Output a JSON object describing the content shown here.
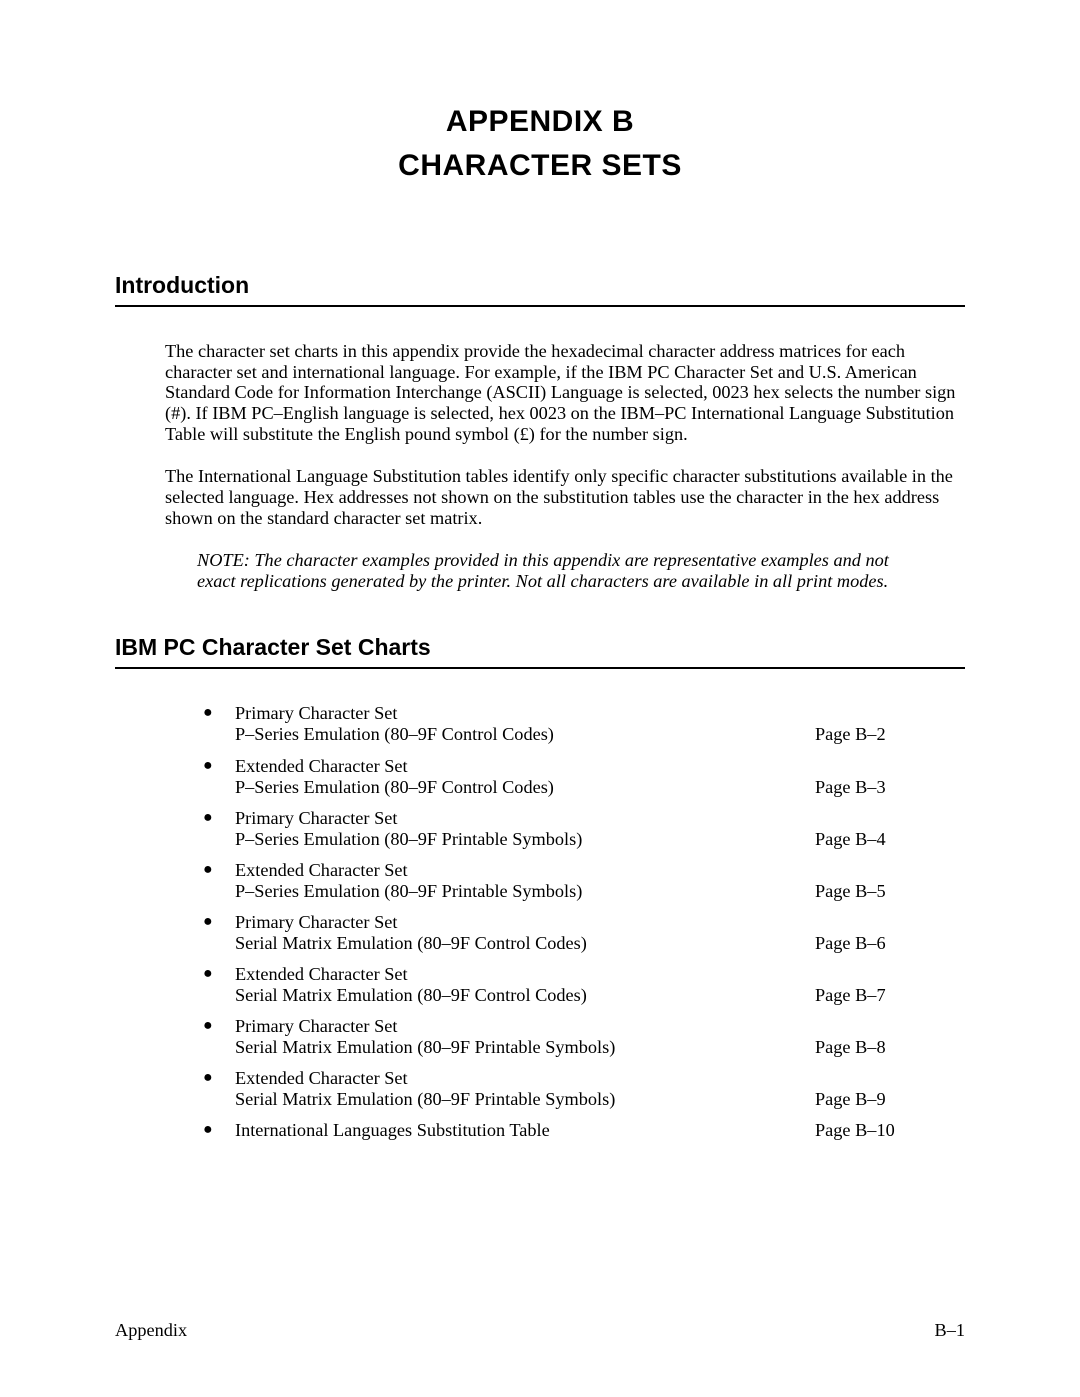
{
  "title": {
    "line1": "APPENDIX B",
    "line2": "CHARACTER SETS"
  },
  "sections": {
    "intro_heading": "Introduction",
    "intro_p1": "The character set charts in this appendix provide the hexadecimal character address matrices for each character set and international language. For example, if the IBM PC Character Set and U.S. American Standard Code for Information Interchange (ASCII) Language is selected, 0023 hex selects the number sign (#). If IBM PC–English language is selected, hex 0023 on the IBM–PC International Language Substitution Table will substitute the English pound symbol (£) for the number sign.",
    "intro_p2": "The International Language Substitution tables identify only specific character substitutions available in the selected language. Hex addresses not shown on the substitution tables use the character in the hex address shown on the standard character set matrix.",
    "note": "NOTE: The character examples provided in this appendix are representative examples and not exact replications generated by the printer. Not all characters are available in all print modes.",
    "charts_heading": "IBM PC Character Set Charts"
  },
  "toc": [
    {
      "line1": "Primary Character Set",
      "line2": "P–Series Emulation (80–9F Control Codes)",
      "page": "Page B–2"
    },
    {
      "line1": "Extended Character Set",
      "line2": "P–Series Emulation (80–9F Control Codes)",
      "page": "Page B–3"
    },
    {
      "line1": "Primary Character Set",
      "line2": "P–Series Emulation (80–9F Printable Symbols)",
      "page": "Page B–4"
    },
    {
      "line1": "Extended Character Set",
      "line2": "P–Series Emulation (80–9F Printable Symbols)",
      "page": "Page B–5"
    },
    {
      "line1": "Primary Character Set",
      "line2": "Serial Matrix Emulation (80–9F Control Codes)",
      "page": "Page B–6"
    },
    {
      "line1": "Extended Character Set",
      "line2": "Serial Matrix Emulation (80–9F Control Codes)",
      "page": "Page B–7"
    },
    {
      "line1": "Primary Character Set",
      "line2": "Serial Matrix Emulation (80–9F Printable Symbols)",
      "page": "Page B–8"
    },
    {
      "line1": "Extended Character Set",
      "line2": "Serial Matrix Emulation (80–9F Printable Symbols)",
      "page": "Page B–9"
    },
    {
      "line1": "International Languages Substitution Table",
      "line2": "",
      "page": "Page B–10"
    }
  ],
  "footer": {
    "left": "Appendix",
    "right": "B–1"
  }
}
